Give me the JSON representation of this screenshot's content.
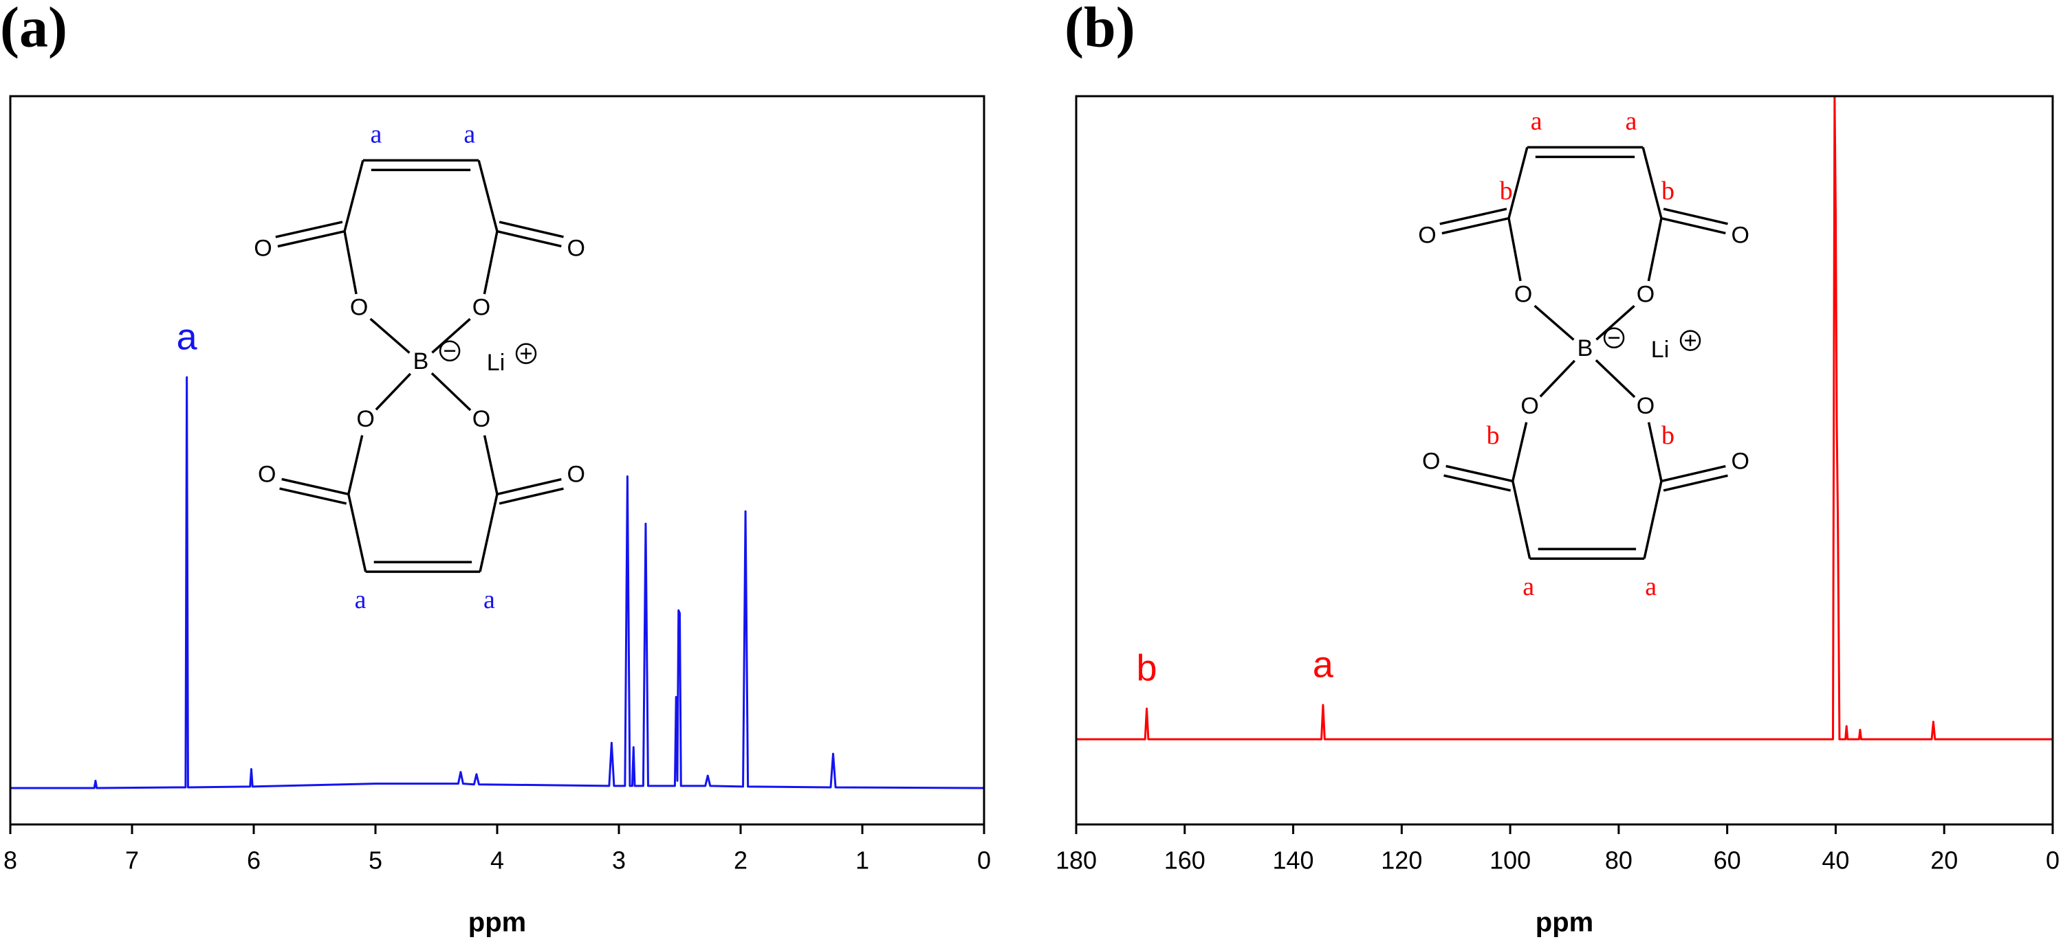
{
  "chart_data": [
    {
      "type": "line",
      "title": "(a)",
      "x_label": "ppm",
      "color": "#1414f0",
      "xlim": [
        8,
        0
      ],
      "xticks": [
        8,
        7,
        6,
        5,
        4,
        3,
        2,
        1,
        0
      ],
      "ylim": [
        0,
        100
      ],
      "x": [
        8.0,
        7.31,
        7.3,
        7.29,
        6.6,
        6.56,
        6.55,
        6.54,
        6.03,
        6.02,
        6.01,
        5.0,
        4.32,
        4.3,
        4.28,
        4.19,
        4.17,
        4.15,
        3.08,
        3.06,
        3.04,
        2.95,
        2.93,
        2.91,
        2.89,
        2.88,
        2.87,
        2.8,
        2.78,
        2.76,
        2.54,
        2.53,
        2.52,
        2.51,
        2.5,
        2.49,
        2.29,
        2.27,
        2.25,
        1.98,
        1.96,
        1.94,
        1.26,
        1.24,
        1.22,
        0.0
      ],
      "values": [
        5.0,
        5.0,
        6.0,
        5.0,
        5.1,
        5.1,
        61.4,
        5.1,
        5.2,
        7.6,
        5.2,
        5.6,
        5.6,
        7.2,
        5.6,
        5.5,
        6.9,
        5.5,
        5.3,
        11.2,
        5.3,
        5.3,
        47.8,
        5.3,
        5.3,
        10.6,
        5.3,
        5.3,
        41.3,
        5.3,
        5.3,
        17.5,
        6.0,
        29.4,
        29.0,
        5.3,
        5.3,
        6.7,
        5.3,
        5.2,
        43.0,
        5.2,
        5.1,
        9.7,
        5.1,
        5.0
      ],
      "annotations": [
        {
          "text": "a",
          "x": 6.55
        }
      ],
      "structure": {
        "label_color": "#1414f0",
        "labels": [
          "a",
          "a",
          "O",
          "O",
          "O",
          "O",
          "B",
          "Li",
          "O",
          "O",
          "O",
          "O",
          "a",
          "a"
        ]
      }
    },
    {
      "type": "line",
      "title": "(b)",
      "x_label": "ppm",
      "color": "#ff0000",
      "xlim": [
        180,
        0
      ],
      "xticks": [
        180,
        160,
        140,
        120,
        100,
        80,
        60,
        40,
        20,
        0
      ],
      "ylim": [
        0,
        100
      ],
      "x": [
        180,
        167.3,
        167.0,
        166.7,
        134.8,
        134.5,
        134.2,
        40.5,
        40.2,
        40.0,
        39.8,
        39.6,
        39.3,
        38.2,
        38.0,
        37.8,
        35.7,
        35.5,
        35.3,
        22.3,
        22.0,
        21.7,
        0
      ],
      "values": [
        11.7,
        11.7,
        15.9,
        11.7,
        11.7,
        16.4,
        11.7,
        11.7,
        100,
        84,
        55,
        42,
        11.7,
        11.7,
        13.5,
        11.7,
        11.7,
        13.0,
        11.7,
        11.7,
        14.1,
        11.7,
        11.7
      ],
      "annotations": [
        {
          "text": "b",
          "x": 167.0
        },
        {
          "text": "a",
          "x": 134.5
        }
      ],
      "structure": {
        "label_color": "#ff0000",
        "labels": [
          "a",
          "a",
          "b",
          "b",
          "O",
          "O",
          "O",
          "O",
          "B",
          "Li",
          "O",
          "O",
          "b",
          "b",
          "O",
          "O",
          "a",
          "a"
        ]
      }
    }
  ]
}
